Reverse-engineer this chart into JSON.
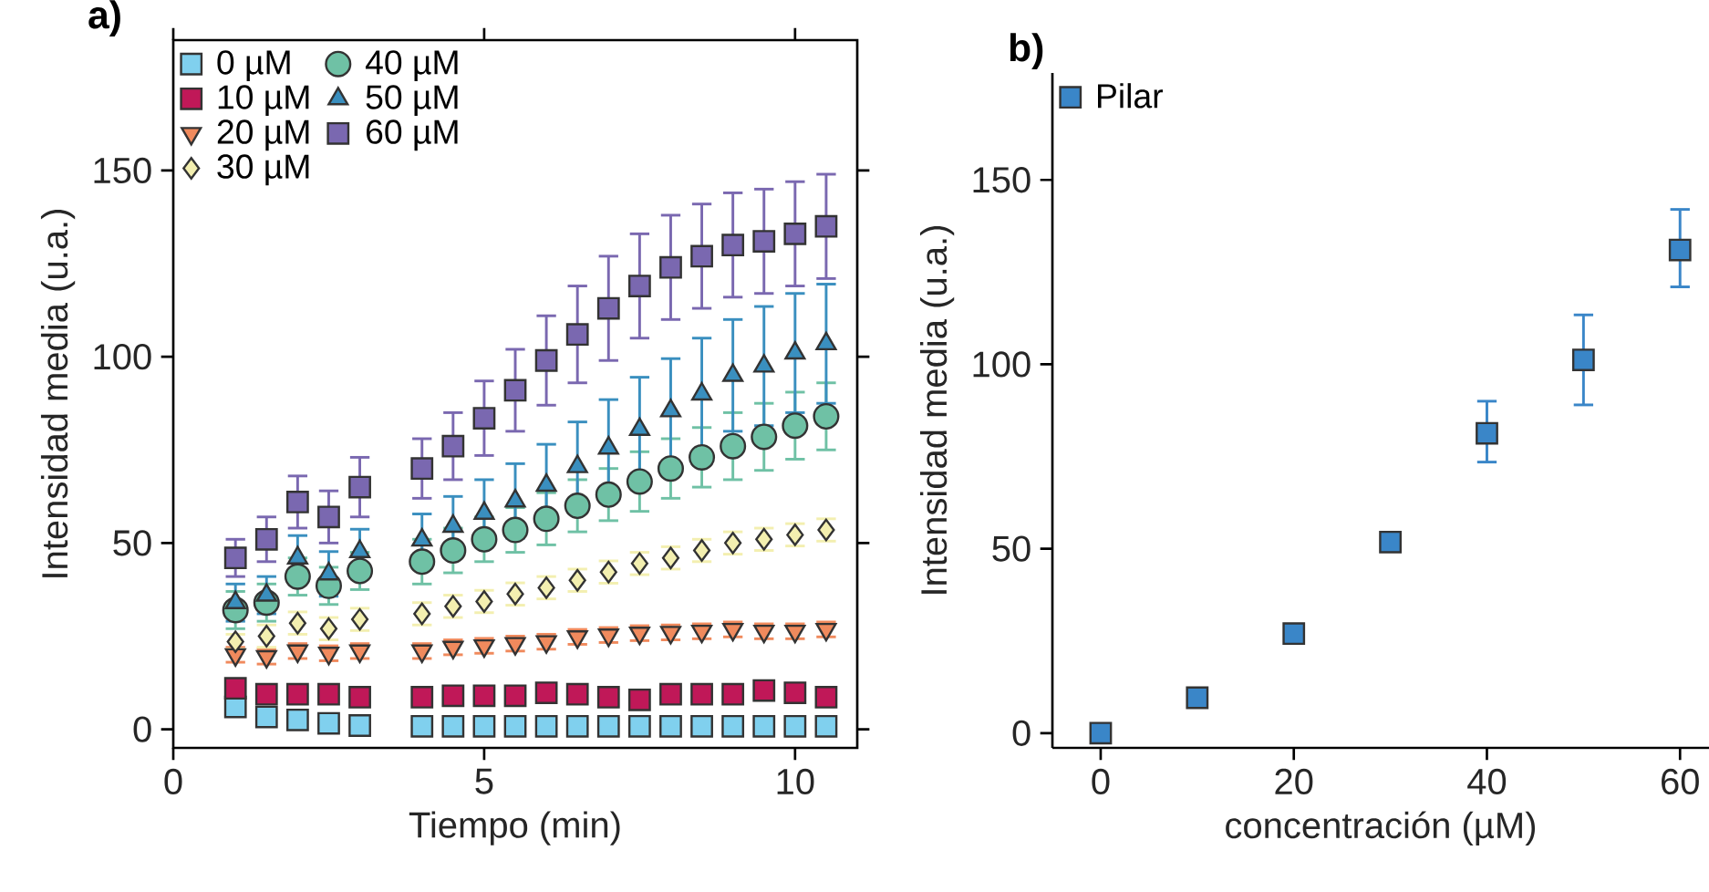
{
  "chart_data": [
    {
      "type": "scatter",
      "title": "a)",
      "xlabel": "Tiempo (min)",
      "ylabel": "Intensidad media (u.a.)",
      "legend": "top left",
      "x": [
        1,
        1.5,
        2,
        2.5,
        3,
        4,
        4.5,
        5,
        5.5,
        6,
        6.5,
        7,
        7.5,
        8,
        8.5,
        9,
        9.5,
        10,
        10.5
      ],
      "xlim": [
        0,
        11
      ],
      "ylim": [
        -5,
        185
      ],
      "xticks": [
        0,
        5,
        10
      ],
      "yticks": [
        0,
        50,
        100,
        150
      ],
      "series": [
        {
          "name": "0 µM",
          "color": "#80d0ee",
          "marker": "square",
          "values": [
            6,
            3.3,
            2.5,
            1.6,
            1,
            0.8,
            0.8,
            0.8,
            0.8,
            0.8,
            0.8,
            0.8,
            0.8,
            0.8,
            0.8,
            0.8,
            0.8,
            0.8,
            0.8
          ]
        },
        {
          "name": "10 µM",
          "color": "#c01858",
          "marker": "square",
          "values": [
            11,
            9.4,
            9.4,
            9.4,
            8.6,
            8.6,
            9,
            9,
            9,
            9.8,
            9.4,
            8.6,
            7.9,
            9.4,
            9.4,
            9.4,
            10.4,
            9.8,
            8.6
          ]
        },
        {
          "name": "20 µM",
          "color": "#f08a5d",
          "marker": "triangle-down",
          "values": [
            20,
            19.5,
            21,
            20.4,
            21,
            21,
            22,
            22.4,
            23,
            23.5,
            24.8,
            25.3,
            25.8,
            26,
            26.3,
            26.8,
            26.3,
            26.3,
            26.8
          ],
          "errors": [
            2,
            2,
            2,
            2,
            2,
            2,
            2,
            2,
            2,
            2,
            2,
            2,
            2,
            2,
            2,
            2,
            2,
            2,
            2
          ]
        },
        {
          "name": "30 µM",
          "color": "#f3efb0",
          "marker": "diamond",
          "values": [
            23.5,
            25,
            28.5,
            27,
            29.5,
            31,
            33,
            34.3,
            36.3,
            38,
            40,
            42.2,
            44.5,
            46,
            48,
            50,
            51,
            52.2,
            53.5
          ],
          "errors": [
            2,
            3,
            3,
            3,
            3,
            3,
            3,
            3,
            3,
            3,
            3,
            3,
            3,
            3,
            3,
            3,
            3,
            3,
            3
          ]
        },
        {
          "name": "40 µM",
          "color": "#6fc1a5",
          "marker": "circle",
          "values": [
            32,
            34,
            41,
            38.5,
            42.5,
            45,
            48,
            51,
            53.5,
            56.5,
            60,
            63,
            66.5,
            70,
            73,
            76,
            78.5,
            81.5,
            84
          ],
          "errors": [
            5,
            5,
            5,
            5,
            5,
            6,
            6,
            6,
            6,
            7,
            7,
            7,
            8,
            8,
            8,
            9,
            9,
            9,
            9
          ]
        },
        {
          "name": "50 µM",
          "color": "#3a8fbf",
          "marker": "triangle",
          "values": [
            34,
            36,
            46,
            41.7,
            47.7,
            50.8,
            54.5,
            58,
            61.3,
            65.5,
            70.5,
            75.5,
            80.5,
            85.5,
            90,
            95,
            97.5,
            101,
            103.5
          ],
          "errors": [
            5,
            5,
            6,
            6,
            6,
            7,
            8,
            9,
            10,
            11,
            12,
            13,
            14,
            14,
            15,
            15,
            16,
            16,
            16
          ]
        },
        {
          "name": "60 µM",
          "color": "#7a68b0",
          "marker": "square",
          "values": [
            46,
            51,
            61,
            57,
            65,
            70,
            76,
            83.5,
            91,
            99,
            106,
            113,
            119,
            124,
            127,
            130,
            131,
            133,
            135
          ],
          "errors": [
            5,
            6,
            7,
            7,
            8,
            8,
            9,
            10,
            11,
            12,
            13,
            14,
            14,
            14,
            14,
            14,
            14,
            14,
            14
          ]
        }
      ]
    },
    {
      "type": "scatter",
      "title": "b)",
      "xlabel": "concentración (µM)",
      "ylabel": "Intensidad media (u.a.)",
      "legend": "top left",
      "marker": "square",
      "x": [
        0,
        10,
        20,
        30,
        40,
        50,
        60
      ],
      "xlim": [
        -5,
        63
      ],
      "ylim": [
        -4,
        179
      ],
      "xticks": [
        0,
        20,
        40,
        60
      ],
      "yticks": [
        0,
        50,
        100,
        150
      ],
      "series": [
        {
          "name": "Pilar",
          "color": "#3a86c8",
          "values": [
            0,
            9.6,
            27,
            51.8,
            81.3,
            101.2,
            131
          ],
          "errors": [
            null,
            null,
            null,
            null,
            [
              73.5,
              90
            ],
            [
              89,
              113.4
            ],
            [
              121,
              142
            ]
          ]
        }
      ]
    }
  ]
}
